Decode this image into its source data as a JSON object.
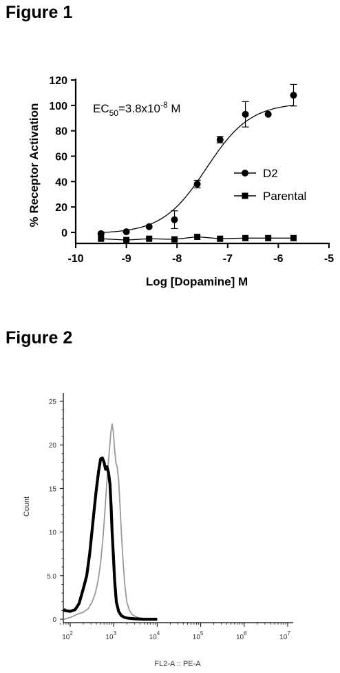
{
  "figures": [
    {
      "title": "Figure 1"
    },
    {
      "title": "Figure 2"
    }
  ],
  "chart_data": [
    {
      "type": "scatter",
      "xlabel": "Log [Dopamine] M",
      "ylabel": "% Receptor Activation",
      "xlim": [
        -10,
        -5
      ],
      "ylim": [
        -10,
        120
      ],
      "x_ticks": [
        "-10",
        "-9",
        "-8",
        "-7",
        "-6",
        "-5"
      ],
      "y_ticks": [
        "120",
        "100",
        "80",
        "60",
        "40",
        "20",
        "0"
      ],
      "annotation": {
        "prefix": "EC",
        "sub": "50",
        "mid": "=3.8x10",
        "sup": "-8",
        "suffix": " M"
      },
      "legend_position": "right",
      "series": [
        {
          "name": "D2",
          "marker": "circle",
          "x": [
            -9.5,
            -9.0,
            -8.55,
            -8.05,
            -7.6,
            -7.15,
            -6.65,
            -6.2,
            -5.7
          ],
          "y": [
            -1,
            0.5,
            4.5,
            10,
            38,
            73,
            93,
            93,
            108
          ],
          "err": [
            0,
            0,
            0,
            7,
            3,
            2.5,
            10,
            0,
            8.5
          ],
          "fit_curve": {
            "bottom": -1,
            "top": 102,
            "log_ec50": -7.42,
            "hill": 1.0
          }
        },
        {
          "name": "Parental",
          "marker": "square",
          "x": [
            -9.5,
            -9.0,
            -8.55,
            -8.05,
            -7.6,
            -7.15,
            -6.65,
            -6.2,
            -5.7
          ],
          "y": [
            -5,
            -6,
            -5,
            -5.5,
            -3.5,
            -5,
            -4.5,
            -4.5,
            -4.5
          ],
          "err": [
            0,
            0,
            0,
            0,
            0,
            0,
            0,
            0,
            0
          ]
        }
      ]
    },
    {
      "type": "area",
      "xlabel": "FL2-A :: PE-A",
      "ylabel": "Count",
      "x_scale": "log",
      "xlim": [
        60,
        10000000
      ],
      "ylim": [
        0,
        26
      ],
      "x_ticks": [
        {
          "base": "10",
          "exp": "2",
          "value": 100
        },
        {
          "base": "10",
          "exp": "3",
          "value": 1000
        },
        {
          "base": "10",
          "exp": "4",
          "value": 10000
        },
        {
          "base": "10",
          "exp": "5",
          "value": 100000
        },
        {
          "base": "10",
          "exp": "6",
          "value": 1000000
        },
        {
          "base": "10",
          "exp": "7",
          "value": 10000000
        }
      ],
      "y_ticks": [
        "0",
        "5.0",
        "10",
        "15",
        "20",
        "25"
      ],
      "series": [
        {
          "color": "#000000",
          "style": "thick",
          "x": [
            60,
            75,
            100,
            130,
            160,
            200,
            240,
            280,
            330,
            390,
            450,
            500,
            550,
            600,
            650,
            700,
            760,
            820,
            870,
            920,
            980,
            1050,
            1150,
            1300,
            1500,
            1800,
            2200,
            3000,
            5000,
            10000
          ],
          "y": [
            1.2,
            1.0,
            0.9,
            1.1,
            1.8,
            3.5,
            5.0,
            7.5,
            11.0,
            14.5,
            17.0,
            18.4,
            18.5,
            18.0,
            17.2,
            17.5,
            16.8,
            15.5,
            13.0,
            10.0,
            7.5,
            4.5,
            2.0,
            0.9,
            0.4,
            0.2,
            0.1,
            0.05,
            0.0,
            0.0
          ]
        },
        {
          "color": "#999999",
          "style": "thin",
          "x": [
            60,
            100,
            150,
            200,
            260,
            320,
            380,
            440,
            500,
            560,
            620,
            680,
            740,
            800,
            860,
            920,
            980,
            1050,
            1120,
            1200,
            1300,
            1400,
            1500,
            1650,
            1800,
            2000,
            2300,
            2700,
            3200,
            4000,
            6000,
            10000
          ],
          "y": [
            0.0,
            0.2,
            0.6,
            0.8,
            1.2,
            2.0,
            3.0,
            4.5,
            6.5,
            9.0,
            12.0,
            15.0,
            17.5,
            19.5,
            21.5,
            22.4,
            21.5,
            19.5,
            18.0,
            17.5,
            16.0,
            13.0,
            10.0,
            6.5,
            4.0,
            2.0,
            1.0,
            0.5,
            0.3,
            0.1,
            0.0,
            0.0
          ]
        }
      ]
    }
  ]
}
